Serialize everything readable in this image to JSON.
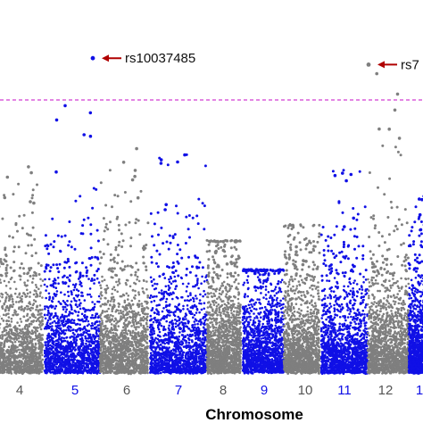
{
  "colors": {
    "gray": "#7f7f7f",
    "blue": "#1010e6",
    "threshold": "#d23cd2",
    "arrow": "#b00000",
    "text": "#222222"
  },
  "chart_data": {
    "type": "scatter",
    "subtype": "manhattan",
    "title": "",
    "xlabel": "Chromosome",
    "ylabel": "",
    "grid": false,
    "chromosomes": [
      {
        "label": "4",
        "color": "gray",
        "peak": 7.2
      },
      {
        "label": "5",
        "color": "blue",
        "peak": 8.6
      },
      {
        "label": "6",
        "color": "gray",
        "peak": 7.4
      },
      {
        "label": "7",
        "color": "blue",
        "peak": 6.9
      },
      {
        "label": "8",
        "color": "gray",
        "peak": 4.1
      },
      {
        "label": "9",
        "color": "blue",
        "peak": 3.2
      },
      {
        "label": "10",
        "color": "gray",
        "peak": 4.6
      },
      {
        "label": "11",
        "color": "blue",
        "peak": 6.3
      },
      {
        "label": "12",
        "color": "gray",
        "peak": 9.4
      },
      {
        "label": "1",
        "color": "blue",
        "peak": 5.5
      }
    ],
    "threshold": {
      "value": 8.5,
      "style": "dashed"
    },
    "annotations": [
      {
        "label": "rs10037485",
        "chromosome": "5",
        "value": 9.8
      },
      {
        "label": "rs7",
        "chromosome": "12",
        "value": 9.6
      }
    ],
    "ylim": [
      0,
      11
    ]
  }
}
